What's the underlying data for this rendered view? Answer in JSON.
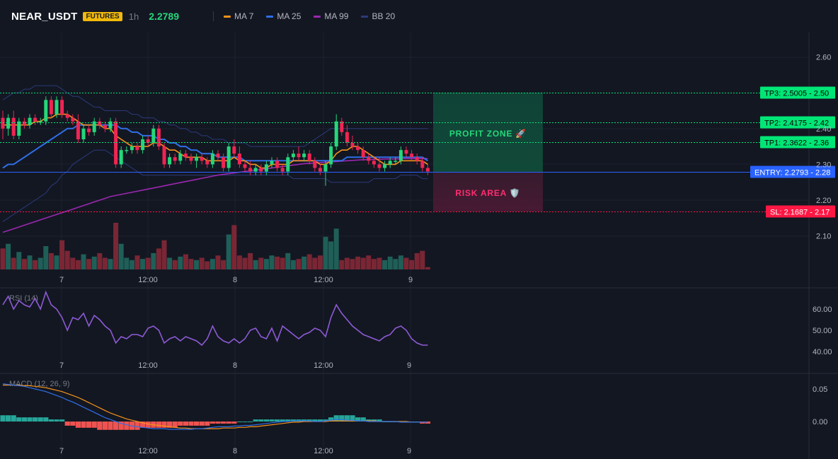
{
  "header": {
    "symbol": "NEAR_USDT",
    "badge": "FUTURES",
    "timeframe": "1h",
    "price": "2.2789",
    "legend": [
      {
        "label": "MA 7",
        "color": "#f7931a"
      },
      {
        "label": "MA 25",
        "color": "#2f6fe8"
      },
      {
        "label": "MA 99",
        "color": "#9c27b0"
      },
      {
        "label": "BB 20",
        "color": "#2a3a7a"
      }
    ]
  },
  "colors": {
    "up": "#26a69a",
    "down": "#ef2554",
    "up_bright": "#26d67a",
    "tp": "#00e676",
    "sl": "#ff1744",
    "entry": "#2962ff"
  },
  "levels": {
    "tp3": {
      "label": "TP3: 2.5005",
      "axis": "2.50",
      "value": 2.5005
    },
    "tp2": {
      "label": "TP2: 2.4175",
      "axis": "2.42",
      "value": 2.4175
    },
    "tp1": {
      "label": "TP1: 2.3622",
      "axis": "2.36",
      "value": 2.3622
    },
    "entry": {
      "label": "ENTRY: 2.2793",
      "axis": "2.28",
      "value": 2.2793
    },
    "sl": {
      "label": "SL: 2.1687",
      "axis": "2.17",
      "value": 2.1687
    }
  },
  "zones": {
    "profit_label": "PROFIT ZONE 🚀",
    "risk_label": "RISK AREA 🛡️"
  },
  "price_axis": {
    "ticks": [
      "2.60",
      "2.40",
      "2.30",
      "2.20",
      "2.10"
    ],
    "tick_values": [
      2.6,
      2.4,
      2.3,
      2.2,
      2.1
    ]
  },
  "time_axis": {
    "labels": [
      "7",
      "12:00",
      "8",
      "12:00",
      "9"
    ]
  },
  "rsi": {
    "title": "RSI (14)",
    "ticks": [
      "60.00",
      "50.00",
      "40.00"
    ],
    "tick_values": [
      60,
      50,
      40
    ]
  },
  "macd": {
    "title": "MACD (12, 26, 9)",
    "ticks": [
      "0.05",
      "0.00"
    ],
    "tick_values": [
      0.05,
      0.0
    ]
  },
  "chart_data": {
    "type": "candlestick",
    "candles": [
      {
        "o": 2.43,
        "h": 2.45,
        "l": 2.37,
        "c": 2.4
      },
      {
        "o": 2.4,
        "h": 2.44,
        "l": 2.38,
        "c": 2.43
      },
      {
        "o": 2.43,
        "h": 2.45,
        "l": 2.37,
        "c": 2.38
      },
      {
        "o": 2.38,
        "h": 2.43,
        "l": 2.37,
        "c": 2.42
      },
      {
        "o": 2.42,
        "h": 2.43,
        "l": 2.4,
        "c": 2.41
      },
      {
        "o": 2.41,
        "h": 2.44,
        "l": 2.4,
        "c": 2.43
      },
      {
        "o": 2.43,
        "h": 2.44,
        "l": 2.41,
        "c": 2.42
      },
      {
        "o": 2.42,
        "h": 2.43,
        "l": 2.41,
        "c": 2.42
      },
      {
        "o": 2.42,
        "h": 2.49,
        "l": 2.41,
        "c": 2.48
      },
      {
        "o": 2.48,
        "h": 2.49,
        "l": 2.43,
        "c": 2.44
      },
      {
        "o": 2.44,
        "h": 2.49,
        "l": 2.43,
        "c": 2.48
      },
      {
        "o": 2.48,
        "h": 2.49,
        "l": 2.43,
        "c": 2.44
      },
      {
        "o": 2.44,
        "h": 2.45,
        "l": 2.42,
        "c": 2.43
      },
      {
        "o": 2.43,
        "h": 2.44,
        "l": 2.41,
        "c": 2.42
      },
      {
        "o": 2.42,
        "h": 2.44,
        "l": 2.36,
        "c": 2.37
      },
      {
        "o": 2.37,
        "h": 2.41,
        "l": 2.36,
        "c": 2.4
      },
      {
        "o": 2.4,
        "h": 2.41,
        "l": 2.38,
        "c": 2.39
      },
      {
        "o": 2.39,
        "h": 2.43,
        "l": 2.38,
        "c": 2.42
      },
      {
        "o": 2.42,
        "h": 2.43,
        "l": 2.4,
        "c": 2.41
      },
      {
        "o": 2.41,
        "h": 2.42,
        "l": 2.39,
        "c": 2.4
      },
      {
        "o": 2.4,
        "h": 2.43,
        "l": 2.39,
        "c": 2.42
      },
      {
        "o": 2.42,
        "h": 2.43,
        "l": 2.29,
        "c": 2.3
      },
      {
        "o": 2.3,
        "h": 2.35,
        "l": 2.29,
        "c": 2.34
      },
      {
        "o": 2.34,
        "h": 2.35,
        "l": 2.33,
        "c": 2.34
      },
      {
        "o": 2.34,
        "h": 2.36,
        "l": 2.33,
        "c": 2.35
      },
      {
        "o": 2.35,
        "h": 2.36,
        "l": 2.33,
        "c": 2.34
      },
      {
        "o": 2.34,
        "h": 2.38,
        "l": 2.33,
        "c": 2.37
      },
      {
        "o": 2.37,
        "h": 2.38,
        "l": 2.35,
        "c": 2.36
      },
      {
        "o": 2.36,
        "h": 2.41,
        "l": 2.35,
        "c": 2.4
      },
      {
        "o": 2.4,
        "h": 2.41,
        "l": 2.34,
        "c": 2.35
      },
      {
        "o": 2.35,
        "h": 2.36,
        "l": 2.29,
        "c": 2.3
      },
      {
        "o": 2.3,
        "h": 2.33,
        "l": 2.29,
        "c": 2.32
      },
      {
        "o": 2.32,
        "h": 2.33,
        "l": 2.3,
        "c": 2.31
      },
      {
        "o": 2.31,
        "h": 2.34,
        "l": 2.3,
        "c": 2.33
      },
      {
        "o": 2.33,
        "h": 2.34,
        "l": 2.31,
        "c": 2.32
      },
      {
        "o": 2.32,
        "h": 2.33,
        "l": 2.3,
        "c": 2.31
      },
      {
        "o": 2.31,
        "h": 2.33,
        "l": 2.29,
        "c": 2.32
      },
      {
        "o": 2.32,
        "h": 2.33,
        "l": 2.3,
        "c": 2.31
      },
      {
        "o": 2.31,
        "h": 2.32,
        "l": 2.29,
        "c": 2.3
      },
      {
        "o": 2.3,
        "h": 2.34,
        "l": 2.29,
        "c": 2.33
      },
      {
        "o": 2.33,
        "h": 2.34,
        "l": 2.31,
        "c": 2.32
      },
      {
        "o": 2.32,
        "h": 2.33,
        "l": 2.28,
        "c": 2.29
      },
      {
        "o": 2.29,
        "h": 2.36,
        "l": 2.28,
        "c": 2.35
      },
      {
        "o": 2.35,
        "h": 2.37,
        "l": 2.32,
        "c": 2.33
      },
      {
        "o": 2.33,
        "h": 2.35,
        "l": 2.29,
        "c": 2.3
      },
      {
        "o": 2.3,
        "h": 2.31,
        "l": 2.28,
        "c": 2.29
      },
      {
        "o": 2.29,
        "h": 2.31,
        "l": 2.27,
        "c": 2.28
      },
      {
        "o": 2.28,
        "h": 2.3,
        "l": 2.27,
        "c": 2.29
      },
      {
        "o": 2.29,
        "h": 2.3,
        "l": 2.27,
        "c": 2.28
      },
      {
        "o": 2.28,
        "h": 2.31,
        "l": 2.27,
        "c": 2.3
      },
      {
        "o": 2.3,
        "h": 2.32,
        "l": 2.29,
        "c": 2.31
      },
      {
        "o": 2.31,
        "h": 2.32,
        "l": 2.28,
        "c": 2.29
      },
      {
        "o": 2.29,
        "h": 2.3,
        "l": 2.27,
        "c": 2.28
      },
      {
        "o": 2.28,
        "h": 2.33,
        "l": 2.27,
        "c": 2.32
      },
      {
        "o": 2.32,
        "h": 2.34,
        "l": 2.31,
        "c": 2.33
      },
      {
        "o": 2.33,
        "h": 2.35,
        "l": 2.31,
        "c": 2.32
      },
      {
        "o": 2.32,
        "h": 2.34,
        "l": 2.31,
        "c": 2.33
      },
      {
        "o": 2.33,
        "h": 2.34,
        "l": 2.3,
        "c": 2.31
      },
      {
        "o": 2.31,
        "h": 2.32,
        "l": 2.28,
        "c": 2.29
      },
      {
        "o": 2.29,
        "h": 2.3,
        "l": 2.27,
        "c": 2.28
      },
      {
        "o": 2.28,
        "h": 2.31,
        "l": 2.24,
        "c": 2.3
      },
      {
        "o": 2.3,
        "h": 2.36,
        "l": 2.29,
        "c": 2.35
      },
      {
        "o": 2.35,
        "h": 2.44,
        "l": 2.34,
        "c": 2.42
      },
      {
        "o": 2.42,
        "h": 2.43,
        "l": 2.38,
        "c": 2.39
      },
      {
        "o": 2.39,
        "h": 2.41,
        "l": 2.35,
        "c": 2.36
      },
      {
        "o": 2.36,
        "h": 2.38,
        "l": 2.34,
        "c": 2.35
      },
      {
        "o": 2.35,
        "h": 2.36,
        "l": 2.33,
        "c": 2.34
      },
      {
        "o": 2.34,
        "h": 2.35,
        "l": 2.31,
        "c": 2.32
      },
      {
        "o": 2.32,
        "h": 2.33,
        "l": 2.3,
        "c": 2.31
      },
      {
        "o": 2.31,
        "h": 2.32,
        "l": 2.29,
        "c": 2.3
      },
      {
        "o": 2.3,
        "h": 2.32,
        "l": 2.28,
        "c": 2.29
      },
      {
        "o": 2.29,
        "h": 2.31,
        "l": 2.28,
        "c": 2.3
      },
      {
        "o": 2.3,
        "h": 2.32,
        "l": 2.29,
        "c": 2.31
      },
      {
        "o": 2.31,
        "h": 2.32,
        "l": 2.3,
        "c": 2.31
      },
      {
        "o": 2.31,
        "h": 2.35,
        "l": 2.3,
        "c": 2.34
      },
      {
        "o": 2.34,
        "h": 2.35,
        "l": 2.32,
        "c": 2.33
      },
      {
        "o": 2.33,
        "h": 2.34,
        "l": 2.31,
        "c": 2.32
      },
      {
        "o": 2.32,
        "h": 2.33,
        "l": 2.3,
        "c": 2.31
      },
      {
        "o": 2.31,
        "h": 2.32,
        "l": 2.28,
        "c": 2.29
      },
      {
        "o": 2.29,
        "h": 2.3,
        "l": 2.27,
        "c": 2.28
      }
    ],
    "ma7": [
      2.41,
      2.41,
      2.41,
      2.41,
      2.41,
      2.41,
      2.42,
      2.42,
      2.43,
      2.43,
      2.44,
      2.44,
      2.44,
      2.43,
      2.42,
      2.41,
      2.41,
      2.41,
      2.41,
      2.4,
      2.4,
      2.38,
      2.37,
      2.36,
      2.35,
      2.35,
      2.35,
      2.35,
      2.36,
      2.36,
      2.35,
      2.34,
      2.34,
      2.33,
      2.32,
      2.32,
      2.32,
      2.32,
      2.31,
      2.31,
      2.31,
      2.31,
      2.31,
      2.32,
      2.31,
      2.31,
      2.3,
      2.3,
      2.29,
      2.29,
      2.3,
      2.3,
      2.3,
      2.3,
      2.31,
      2.31,
      2.31,
      2.31,
      2.31,
      2.3,
      2.3,
      2.31,
      2.33,
      2.34,
      2.34,
      2.35,
      2.35,
      2.34,
      2.33,
      2.32,
      2.31,
      2.3,
      2.3,
      2.3,
      2.31,
      2.31,
      2.31,
      2.31,
      2.31,
      2.3
    ],
    "ma25": [
      2.29,
      2.3,
      2.3,
      2.31,
      2.32,
      2.33,
      2.34,
      2.35,
      2.36,
      2.37,
      2.38,
      2.39,
      2.4,
      2.4,
      2.41,
      2.41,
      2.41,
      2.41,
      2.41,
      2.41,
      2.41,
      2.41,
      2.4,
      2.4,
      2.39,
      2.39,
      2.38,
      2.38,
      2.38,
      2.37,
      2.37,
      2.36,
      2.36,
      2.35,
      2.35,
      2.34,
      2.34,
      2.33,
      2.33,
      2.33,
      2.32,
      2.32,
      2.32,
      2.32,
      2.32,
      2.31,
      2.31,
      2.31,
      2.31,
      2.31,
      2.31,
      2.31,
      2.31,
      2.31,
      2.31,
      2.31,
      2.31,
      2.31,
      2.31,
      2.31,
      2.31,
      2.31,
      2.31,
      2.31,
      2.32,
      2.32,
      2.32,
      2.32,
      2.32,
      2.32,
      2.32,
      2.32,
      2.32,
      2.32,
      2.32,
      2.32,
      2.32,
      2.32,
      2.32,
      2.31
    ],
    "ma99": [
      2.11,
      2.115,
      2.12,
      2.125,
      2.13,
      2.135,
      2.14,
      2.145,
      2.15,
      2.155,
      2.16,
      2.165,
      2.17,
      2.175,
      2.18,
      2.185,
      2.19,
      2.195,
      2.2,
      2.205,
      2.21,
      2.213,
      2.216,
      2.219,
      2.222,
      2.225,
      2.228,
      2.231,
      2.234,
      2.237,
      2.24,
      2.243,
      2.246,
      2.249,
      2.252,
      2.255,
      2.258,
      2.261,
      2.264,
      2.267,
      2.27,
      2.272,
      2.274,
      2.276,
      2.278,
      2.28,
      2.282,
      2.284,
      2.286,
      2.288,
      2.29,
      2.292,
      2.294,
      2.296,
      2.298,
      2.3,
      2.302,
      2.303,
      2.304,
      2.305,
      2.306,
      2.307,
      2.308,
      2.309,
      2.31,
      2.311,
      2.312,
      2.313,
      2.313,
      2.314,
      2.314,
      2.315,
      2.315,
      2.315,
      2.316,
      2.316,
      2.316,
      2.316,
      2.316,
      2.316
    ],
    "bb_upper": [
      2.48,
      2.49,
      2.5,
      2.5,
      2.51,
      2.51,
      2.52,
      2.52,
      2.52,
      2.52,
      2.52,
      2.51,
      2.5,
      2.49,
      2.49,
      2.48,
      2.47,
      2.46,
      2.46,
      2.45,
      2.45,
      2.45,
      2.45,
      2.45,
      2.44,
      2.44,
      2.43,
      2.43,
      2.43,
      2.42,
      2.42,
      2.41,
      2.41,
      2.4,
      2.4,
      2.39,
      2.39,
      2.38,
      2.38,
      2.37,
      2.37,
      2.37,
      2.36,
      2.36,
      2.36,
      2.36,
      2.35,
      2.35,
      2.35,
      2.35,
      2.35,
      2.35,
      2.35,
      2.35,
      2.35,
      2.35,
      2.35,
      2.36,
      2.37,
      2.38,
      2.39,
      2.4,
      2.4,
      2.4,
      2.4,
      2.4,
      2.4,
      2.4,
      2.4,
      2.4,
      2.4,
      2.4,
      2.4,
      2.4,
      2.4,
      2.4,
      2.4,
      2.4,
      2.4,
      2.4
    ],
    "bb_lower": [
      2.14,
      2.15,
      2.16,
      2.17,
      2.18,
      2.19,
      2.2,
      2.21,
      2.22,
      2.24,
      2.25,
      2.27,
      2.28,
      2.3,
      2.31,
      2.32,
      2.33,
      2.34,
      2.34,
      2.34,
      2.33,
      2.32,
      2.31,
      2.3,
      2.29,
      2.28,
      2.27,
      2.27,
      2.27,
      2.27,
      2.27,
      2.27,
      2.27,
      2.27,
      2.27,
      2.27,
      2.27,
      2.27,
      2.27,
      2.27,
      2.27,
      2.27,
      2.27,
      2.27,
      2.27,
      2.27,
      2.27,
      2.27,
      2.27,
      2.27,
      2.27,
      2.27,
      2.27,
      2.27,
      2.26,
      2.26,
      2.26,
      2.26,
      2.26,
      2.26,
      2.26,
      2.25,
      2.25,
      2.25,
      2.25,
      2.25,
      2.25,
      2.25,
      2.25,
      2.26,
      2.26,
      2.26,
      2.26,
      2.26,
      2.27,
      2.27,
      2.27,
      2.27,
      2.26,
      2.26
    ],
    "bb_middle": [
      2.31,
      2.32,
      2.33,
      2.33,
      2.34,
      2.35,
      2.36,
      2.37,
      2.37,
      2.38,
      2.38,
      2.39,
      2.39,
      2.39,
      2.4,
      2.4,
      2.4,
      2.4,
      2.4,
      2.39,
      2.39,
      2.38,
      2.38,
      2.37,
      2.36,
      2.36,
      2.35,
      2.35,
      2.35,
      2.34,
      2.34,
      2.34,
      2.33,
      2.33,
      2.33,
      2.33,
      2.33,
      2.32,
      2.32,
      2.32,
      2.32,
      2.31,
      2.31,
      2.31,
      2.31,
      2.31,
      2.31,
      2.31,
      2.31,
      2.31,
      2.31,
      2.31,
      2.31,
      2.31,
      2.31,
      2.31,
      2.31,
      2.31,
      2.31,
      2.31,
      2.31,
      2.31,
      2.31,
      2.32,
      2.32,
      2.32,
      2.32,
      2.32,
      2.32,
      2.33,
      2.33,
      2.33,
      2.33,
      2.33,
      2.33,
      2.33,
      2.33,
      2.33,
      2.33,
      2.33
    ],
    "volume": [
      18,
      22,
      10,
      15,
      9,
      12,
      8,
      10,
      20,
      14,
      12,
      25,
      16,
      10,
      8,
      13,
      9,
      11,
      14,
      10,
      9,
      40,
      22,
      10,
      8,
      12,
      9,
      10,
      14,
      18,
      25,
      10,
      8,
      11,
      13,
      9,
      8,
      10,
      7,
      9,
      12,
      8,
      30,
      38,
      12,
      10,
      14,
      8,
      10,
      9,
      12,
      11,
      10,
      14,
      8,
      9,
      11,
      13,
      10,
      12,
      28,
      24,
      35,
      8,
      10,
      9,
      11,
      10,
      12,
      9,
      10,
      8,
      11,
      9,
      12,
      10,
      8,
      14,
      16,
      2
    ],
    "rsi": [
      62,
      66,
      60,
      64,
      62,
      61,
      65,
      60,
      68,
      62,
      60,
      56,
      50,
      56,
      55,
      58,
      52,
      57,
      55,
      52,
      50,
      44,
      47,
      46,
      48,
      48,
      47,
      51,
      52,
      50,
      44,
      46,
      47,
      45,
      47,
      46,
      45,
      43,
      46,
      52,
      47,
      45,
      44,
      46,
      44,
      46,
      50,
      51,
      47,
      46,
      51,
      45,
      52,
      50,
      48,
      46,
      48,
      49,
      51,
      50,
      47,
      56,
      62,
      58,
      55,
      52,
      50,
      48,
      47,
      46,
      45,
      47,
      48,
      51,
      52,
      50,
      46,
      44,
      43,
      43
    ],
    "macd_line": [
      0.058,
      0.057,
      0.056,
      0.055,
      0.054,
      0.052,
      0.05,
      0.048,
      0.046,
      0.043,
      0.04,
      0.037,
      0.033,
      0.03,
      0.026,
      0.022,
      0.018,
      0.014,
      0.01,
      0.006,
      0.003,
      0.0,
      -0.003,
      -0.005,
      -0.007,
      -0.008,
      -0.009,
      -0.01,
      -0.011,
      -0.011,
      -0.011,
      -0.012,
      -0.012,
      -0.012,
      -0.012,
      -0.012,
      -0.011,
      -0.011,
      -0.01,
      -0.009,
      -0.008,
      -0.008,
      -0.008,
      -0.007,
      -0.007,
      -0.006,
      -0.006,
      -0.005,
      -0.004,
      -0.003,
      -0.002,
      -0.001,
      0.0,
      0.0,
      0.001,
      0.001,
      0.001,
      0.001,
      0.0,
      0.0,
      0.001,
      0.002,
      0.003,
      0.003,
      0.002,
      0.002,
      0.001,
      0.001,
      0.0,
      0.0,
      0.0,
      0.0,
      0.0,
      0.0,
      -0.001,
      -0.001,
      -0.001,
      -0.001,
      -0.001,
      -0.001
    ],
    "macd_signal": [
      0.056,
      0.056,
      0.056,
      0.056,
      0.055,
      0.055,
      0.054,
      0.053,
      0.052,
      0.05,
      0.048,
      0.046,
      0.043,
      0.04,
      0.037,
      0.033,
      0.029,
      0.025,
      0.021,
      0.017,
      0.013,
      0.01,
      0.007,
      0.004,
      0.002,
      0.0,
      -0.002,
      -0.004,
      -0.005,
      -0.006,
      -0.007,
      -0.008,
      -0.009,
      -0.01,
      -0.01,
      -0.011,
      -0.011,
      -0.011,
      -0.011,
      -0.011,
      -0.011,
      -0.01,
      -0.01,
      -0.01,
      -0.009,
      -0.009,
      -0.008,
      -0.008,
      -0.007,
      -0.006,
      -0.005,
      -0.004,
      -0.003,
      -0.002,
      -0.001,
      -0.001,
      0.0,
      0.0,
      0.0,
      0.0,
      0.0,
      0.001,
      0.001,
      0.001,
      0.001,
      0.001,
      0.001,
      0.001,
      0.001,
      0.001,
      0.0,
      0.0,
      0.0,
      0.0,
      0.0,
      0.0,
      -0.001,
      -0.001,
      -0.001,
      -0.001
    ],
    "macd_hist": [
      0.003,
      0.003,
      0.003,
      0.002,
      0.002,
      0.002,
      0.002,
      0.002,
      0.002,
      0.001,
      0.001,
      0.001,
      -0.002,
      -0.002,
      -0.003,
      -0.003,
      -0.003,
      -0.003,
      -0.004,
      -0.004,
      -0.004,
      -0.004,
      -0.004,
      -0.004,
      -0.004,
      -0.004,
      -0.003,
      -0.003,
      -0.003,
      -0.003,
      -0.003,
      -0.003,
      -0.003,
      -0.002,
      -0.002,
      -0.002,
      -0.002,
      -0.002,
      -0.002,
      -0.001,
      -0.001,
      -0.001,
      -0.001,
      -0.001,
      0.0,
      0.0,
      0.0,
      0.001,
      0.001,
      0.001,
      0.001,
      0.001,
      0.001,
      0.001,
      0.001,
      0.001,
      0.001,
      0.001,
      0.001,
      0.001,
      0.001,
      0.002,
      0.003,
      0.003,
      0.003,
      0.003,
      0.002,
      0.002,
      0.001,
      0.001,
      0.001,
      0.0,
      0.0,
      0.0,
      0.0,
      0.0,
      0.0,
      0.0,
      -0.001,
      -0.001
    ]
  }
}
